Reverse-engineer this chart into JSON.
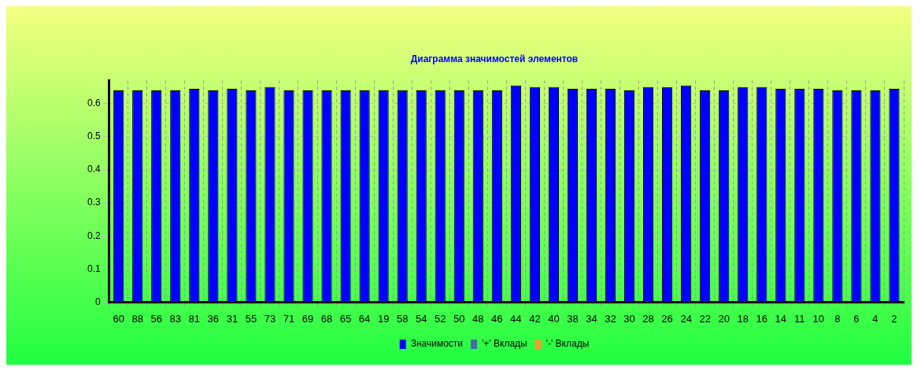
{
  "chart_data": {
    "type": "bar",
    "title": "Диаграмма значимостей элементов",
    "categories": [
      "60",
      "88",
      "56",
      "83",
      "81",
      "36",
      "31",
      "55",
      "73",
      "71",
      "69",
      "68",
      "65",
      "64",
      "19",
      "58",
      "54",
      "52",
      "50",
      "48",
      "46",
      "44",
      "42",
      "40",
      "38",
      "34",
      "32",
      "30",
      "28",
      "26",
      "24",
      "22",
      "20",
      "18",
      "16",
      "14",
      "11",
      "10",
      "8",
      "6",
      "4",
      "2"
    ],
    "series": [
      {
        "name": "Значимости",
        "color": "#0000ff",
        "values": [
          0.64,
          0.64,
          0.64,
          0.64,
          0.645,
          0.64,
          0.645,
          0.64,
          0.65,
          0.64,
          0.64,
          0.64,
          0.64,
          0.64,
          0.64,
          0.64,
          0.64,
          0.64,
          0.64,
          0.64,
          0.64,
          0.655,
          0.65,
          0.65,
          0.645,
          0.645,
          0.645,
          0.64,
          0.65,
          0.65,
          0.655,
          0.64,
          0.64,
          0.65,
          0.65,
          0.645,
          0.645,
          0.645,
          0.64,
          0.64,
          0.64,
          0.645
        ]
      },
      {
        "name": "'+' Вклады",
        "color": "#4a6aa8",
        "values": [
          null,
          null,
          null,
          null,
          null,
          null,
          null,
          null,
          null,
          null,
          null,
          null,
          null,
          null,
          null,
          null,
          null,
          null,
          null,
          null,
          null,
          null,
          null,
          null,
          null,
          null,
          null,
          null,
          null,
          null,
          null,
          null,
          null,
          null,
          null,
          null,
          null,
          null,
          null,
          null,
          null,
          null
        ]
      },
      {
        "name": "'-' Вклады",
        "color": "#f0a030",
        "values": [
          null,
          null,
          null,
          null,
          null,
          null,
          null,
          null,
          null,
          null,
          null,
          null,
          null,
          null,
          null,
          null,
          null,
          null,
          null,
          null,
          null,
          null,
          null,
          null,
          null,
          null,
          null,
          null,
          null,
          null,
          null,
          null,
          null,
          null,
          null,
          null,
          null,
          null,
          null,
          null,
          null,
          null
        ]
      }
    ],
    "ylim": [
      0,
      0.67
    ],
    "yticks": [
      0,
      0.1,
      0.2,
      0.3,
      0.4,
      0.5,
      0.6
    ],
    "grid": true,
    "legend": "bottom"
  }
}
